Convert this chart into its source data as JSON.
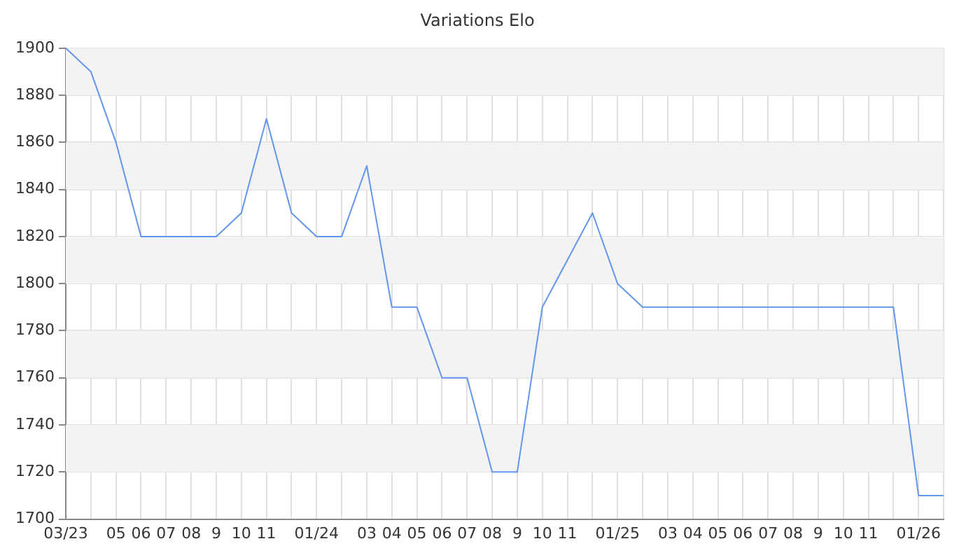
{
  "chart_data": {
    "type": "line",
    "title": "Variations Elo",
    "categories": [
      "03/23",
      null,
      "05",
      "06",
      "07",
      "08",
      "9",
      "10",
      "11",
      null,
      "01/24",
      null,
      "03",
      "04",
      "05",
      "06",
      "07",
      "08",
      "9",
      "10",
      "11",
      null,
      "01/25",
      null,
      "03",
      "04",
      "05",
      "06",
      "07",
      "08",
      "9",
      "10",
      "11",
      null,
      "01/26",
      null
    ],
    "series": [
      {
        "color": "#6495ed",
        "values": [
          1900,
          1890,
          1860,
          1820,
          1820,
          1820,
          1820,
          1830,
          1870,
          1830,
          1820,
          1820,
          1850,
          1790,
          1790,
          1760,
          1760,
          1720,
          1720,
          1790,
          1810,
          1830,
          1800,
          1790,
          1790,
          1790,
          1790,
          1790,
          1790,
          1790,
          1790,
          1790,
          1790,
          1790,
          1710,
          1710
        ]
      }
    ],
    "ylim": [
      1700,
      1900
    ],
    "yticks": [
      1700,
      1720,
      1740,
      1760,
      1780,
      1800,
      1820,
      1840,
      1860,
      1880,
      1900
    ],
    "grid": true,
    "legend": false,
    "marker": "none",
    "line_style": "solid"
  }
}
